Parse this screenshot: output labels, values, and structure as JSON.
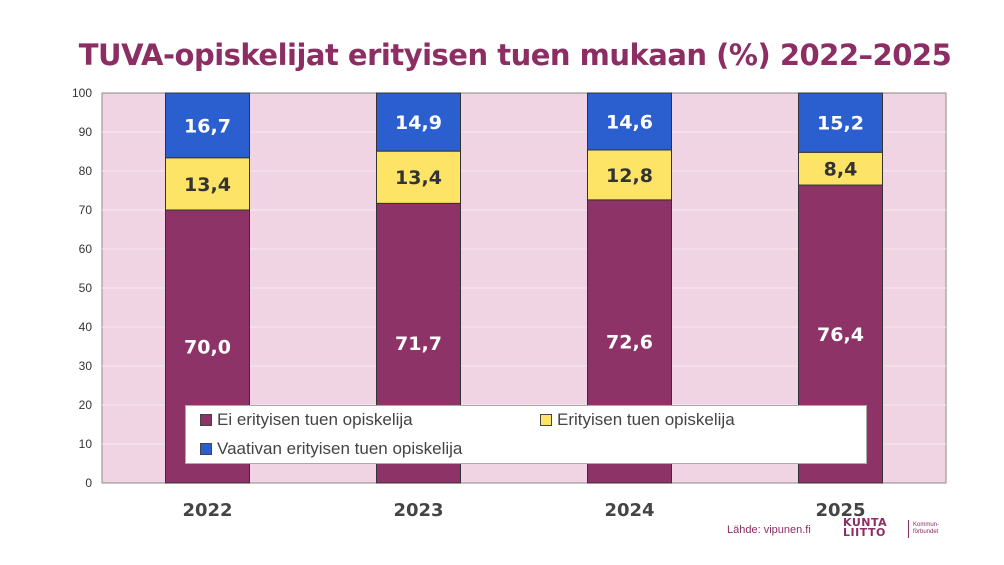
{
  "title": "TUVA-opiskelijat erityisen tuen mukaan (%) 2022–2025",
  "source": "Lähde: vipunen.fi",
  "logo": {
    "main_line1": "KUNTA",
    "main_line2": "LIITTO",
    "sub_line1": "Kommun-",
    "sub_line2": "förbundet"
  },
  "colors": {
    "title": "#8c2d63",
    "plot_background": "#f0d4e3",
    "ei": "#8e3367",
    "erityisen": "#fde467",
    "vaativan": "#2b5fd0"
  },
  "chart_data": {
    "type": "bar",
    "stacked": true,
    "categories": [
      "2022",
      "2023",
      "2024",
      "2025"
    ],
    "series": [
      {
        "name": "Ei erityisen tuen opiskelija",
        "values": [
          70.0,
          71.7,
          72.6,
          76.4
        ],
        "labels": [
          "70,0",
          "71,7",
          "72,6",
          "76,4"
        ]
      },
      {
        "name": "Erityisen tuen opiskelija",
        "values": [
          13.4,
          13.4,
          12.8,
          8.4
        ],
        "labels": [
          "13,4",
          "13,4",
          "12,8",
          "8,4"
        ]
      },
      {
        "name": "Vaativan erityisen tuen opiskelija",
        "values": [
          16.7,
          14.9,
          14.6,
          15.2
        ],
        "labels": [
          "16,7",
          "14,9",
          "14,6",
          "15,2"
        ]
      }
    ],
    "y_ticks": [
      0,
      10,
      20,
      30,
      40,
      50,
      60,
      70,
      80,
      90,
      100
    ],
    "ylim": [
      0,
      100
    ],
    "xlabel": "",
    "ylabel": "",
    "grid": true,
    "legend_position": "bottom-inside"
  }
}
